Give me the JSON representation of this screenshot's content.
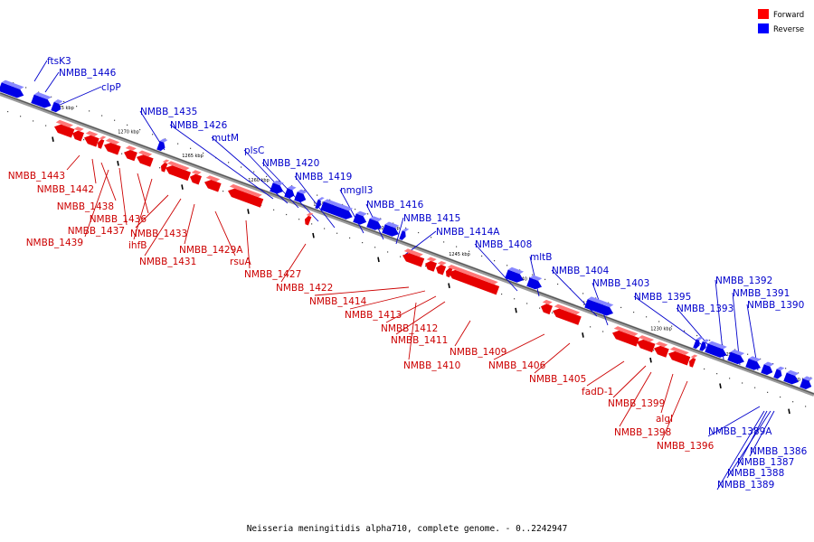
{
  "legend": {
    "items": [
      {
        "label": "Forward",
        "color": "#ff0000"
      },
      {
        "label": "Reverse",
        "color": "#0000ff"
      }
    ]
  },
  "caption": "Neisseria meningitidis alpha710, complete genome. - 0..2242947",
  "colors": {
    "forward": "#e60000",
    "reverse": "#0000e6",
    "axis": "#666666"
  },
  "kbp_ticks": [
    "1275 kbp",
    "1270 kbp",
    "1265 kbp",
    "1260 kbp",
    "1255 kbp",
    "1250 kbp",
    "1245 kbp",
    "1240 kbp",
    "1235 kbp",
    "1230 kbp",
    "1225 kbp",
    "1220 kbp"
  ],
  "reverse_labels": [
    "ftsK3",
    "NMBB_1446",
    "clpP",
    "NMBB_1435",
    "NMBB_1426",
    "mutM",
    "plsC",
    "NMBB_1420",
    "NMBB_1419",
    "nmgII3",
    "NMBB_1416",
    "NMBB_1415",
    "NMBB_1414A",
    "NMBB_1408",
    "mltB",
    "NMBB_1404",
    "NMBB_1403",
    "NMBB_1395",
    "NMBB_1393",
    "NMBB_1392",
    "NMBB_1391",
    "NMBB_1390",
    "NMBB_1389A",
    "NMBB_1386",
    "NMBB_1387",
    "NMBB_1388",
    "NMBB_1389"
  ],
  "forward_labels": [
    "NMBB_1443",
    "NMBB_1442",
    "NMBB_1438",
    "NMBB_1436",
    "NMBB_1437",
    "NMBB_1439",
    "ihfB",
    "NMBB_1433",
    "NMBB_1431",
    "NMBB_1429A",
    "rsuA",
    "NMBB_1427",
    "NMBB_1422",
    "NMBB_1414",
    "NMBB_1413",
    "NMBB_1412",
    "NMBB_1411",
    "NMBB_1410",
    "NMBB_1409",
    "NMBB_1406",
    "NMBB_1405",
    "fadD-1",
    "NMBB_1399",
    "algI",
    "NMBB_1398",
    "NMBB_1396"
  ]
}
